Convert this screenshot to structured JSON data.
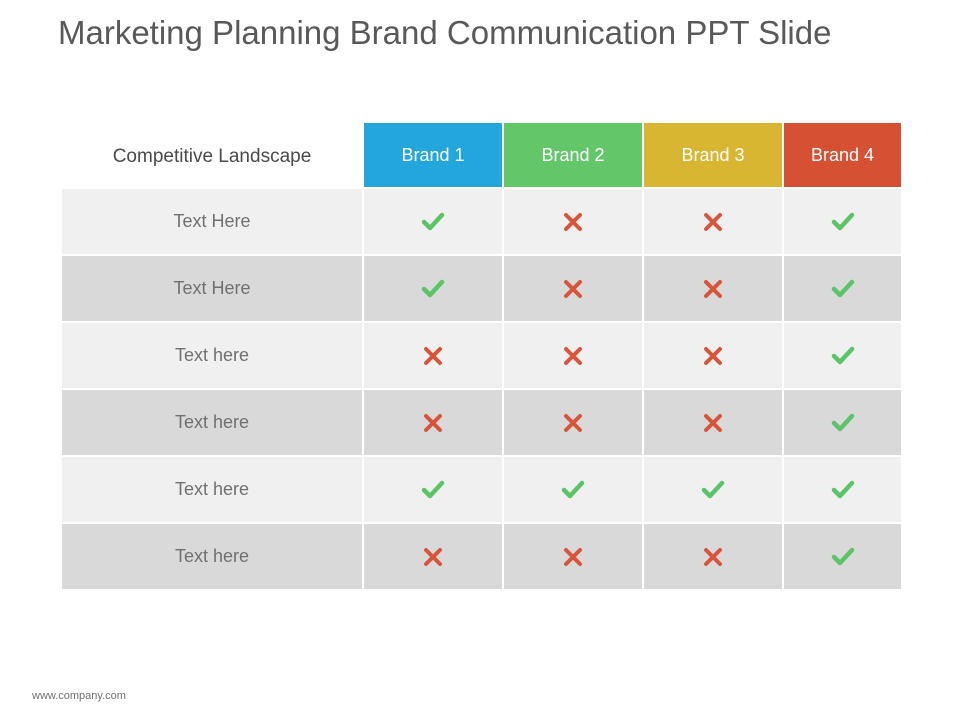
{
  "slide": {
    "title": "Marketing Planning Brand Communication PPT Slide",
    "footer": "www.company.com"
  },
  "table": {
    "corner_label": "Competitive Landscape",
    "brands": [
      {
        "label": "Brand 1",
        "color": "#23a6db"
      },
      {
        "label": "Brand 2",
        "color": "#63c76a"
      },
      {
        "label": "Brand 3",
        "color": "#d9b631"
      },
      {
        "label": "Brand 4",
        "color": "#d65134"
      }
    ],
    "rows": [
      {
        "label": "Text Here",
        "marks": [
          "check",
          "cross",
          "cross",
          "check"
        ]
      },
      {
        "label": "Text Here",
        "marks": [
          "check",
          "cross",
          "cross",
          "check"
        ]
      },
      {
        "label": "Text here",
        "marks": [
          "cross",
          "cross",
          "cross",
          "check"
        ]
      },
      {
        "label": "Text here",
        "marks": [
          "cross",
          "cross",
          "cross",
          "check"
        ]
      },
      {
        "label": "Text here",
        "marks": [
          "check",
          "check",
          "check",
          "check"
        ]
      },
      {
        "label": "Text here",
        "marks": [
          "cross",
          "cross",
          "cross",
          "check"
        ]
      }
    ],
    "icon_colors": {
      "check": "#5bc466",
      "cross": "#d8553a"
    }
  }
}
